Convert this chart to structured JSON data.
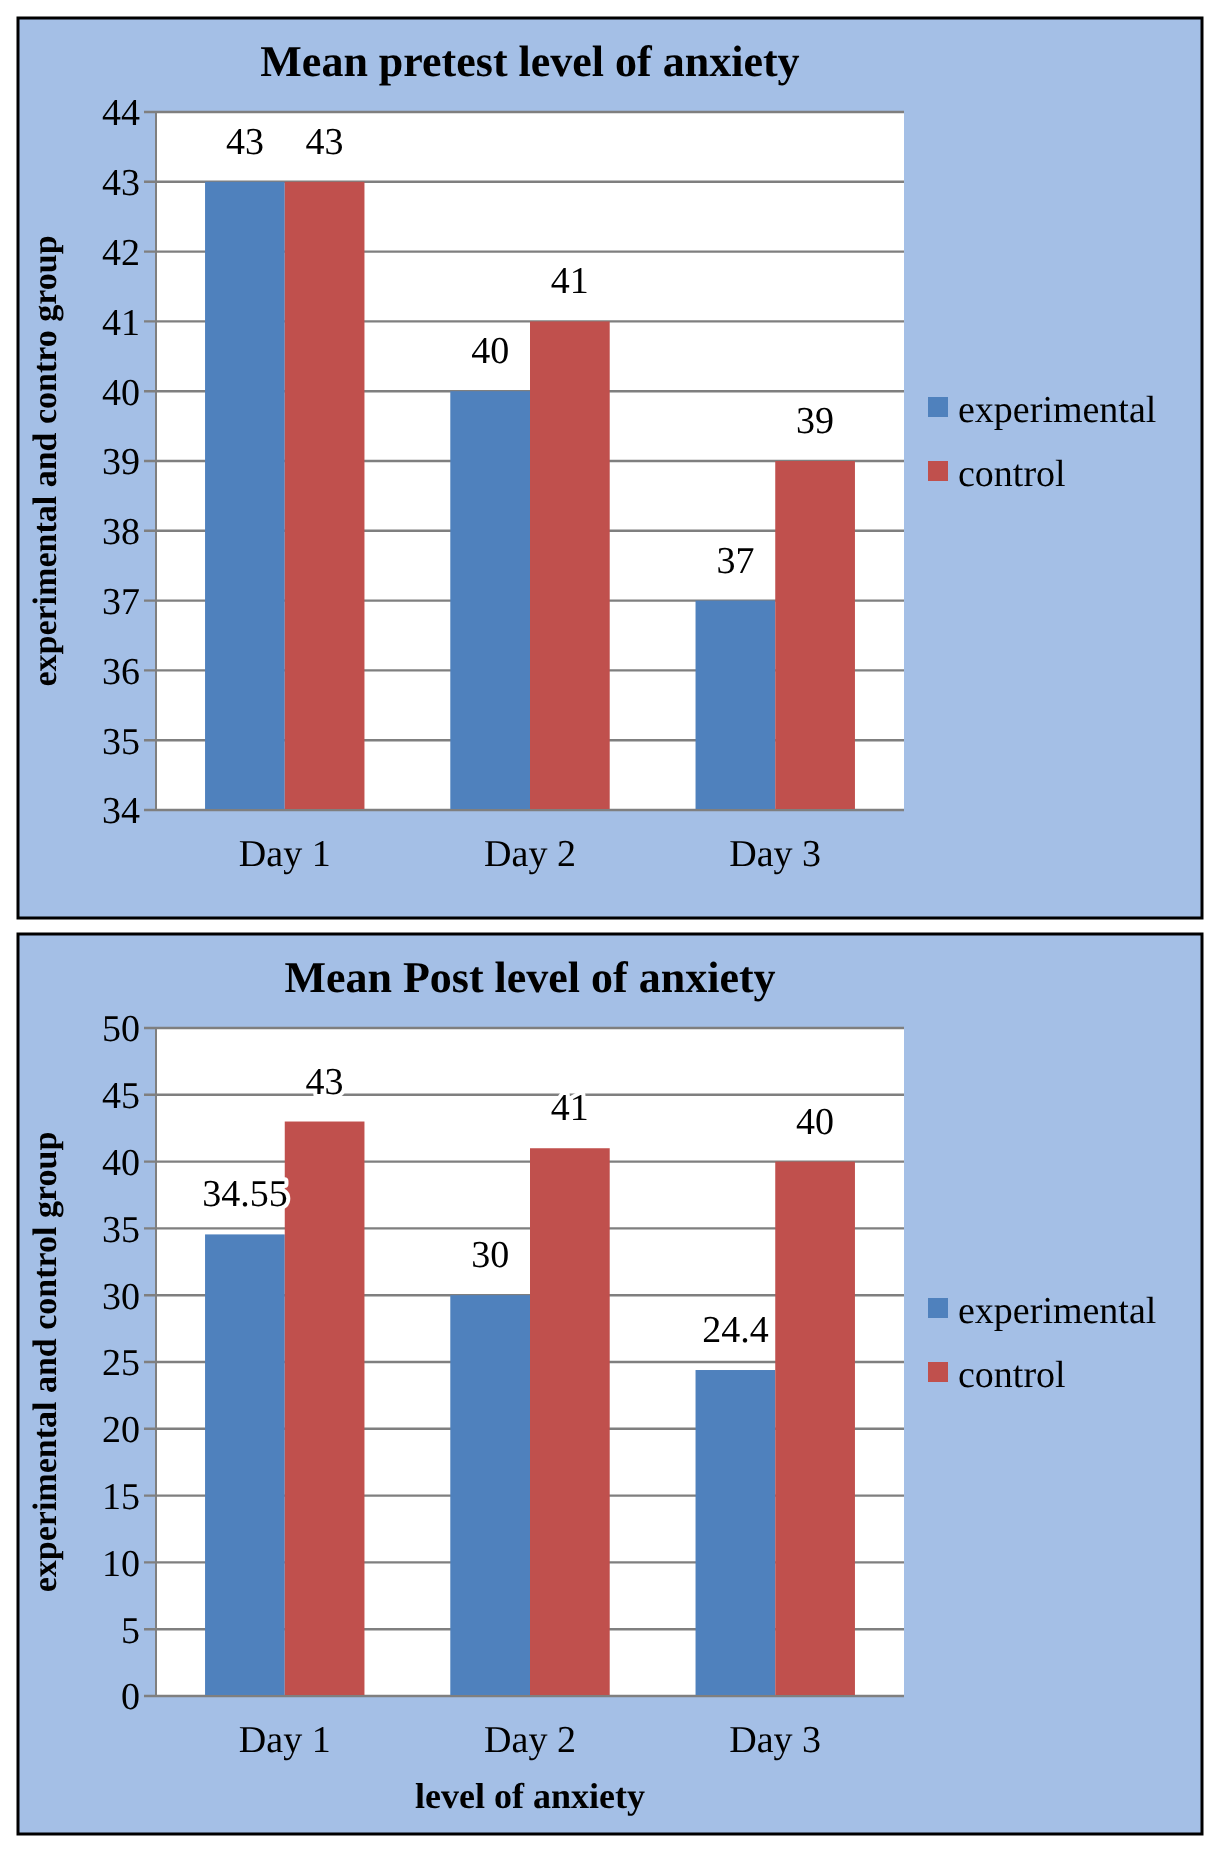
{
  "chart_data": [
    {
      "type": "bar",
      "title": "Mean pretest level of anxiety",
      "ylabel": "experimental and contro group",
      "categories": [
        "Day 1",
        "Day 2",
        "Day 3"
      ],
      "series": [
        {
          "name": "experimental",
          "color": "#4f81bd",
          "values": [
            43,
            40,
            37
          ]
        },
        {
          "name": "control",
          "color": "#c0504d",
          "values": [
            43,
            41,
            39
          ]
        }
      ],
      "ylim": [
        34,
        44
      ],
      "yticks": [
        34,
        35,
        36,
        37,
        38,
        39,
        40,
        41,
        42,
        43,
        44
      ],
      "grid": "y",
      "legend": "right",
      "data_labels": true
    },
    {
      "type": "bar",
      "title": "Mean Post level of anxiety",
      "xlabel": "level of anxiety",
      "ylabel": "experimental and control group",
      "categories": [
        "Day 1",
        "Day 2",
        "Day 3"
      ],
      "series": [
        {
          "name": "experimental",
          "color": "#4f81bd",
          "values": [
            34.55,
            30,
            24.4
          ]
        },
        {
          "name": "control",
          "color": "#c0504d",
          "values": [
            43,
            41,
            40
          ]
        }
      ],
      "ylim": [
        0,
        50
      ],
      "yticks": [
        0,
        5,
        10,
        15,
        20,
        25,
        30,
        35,
        40,
        45,
        50
      ],
      "grid": "y",
      "legend": "right",
      "data_labels": true
    }
  ]
}
